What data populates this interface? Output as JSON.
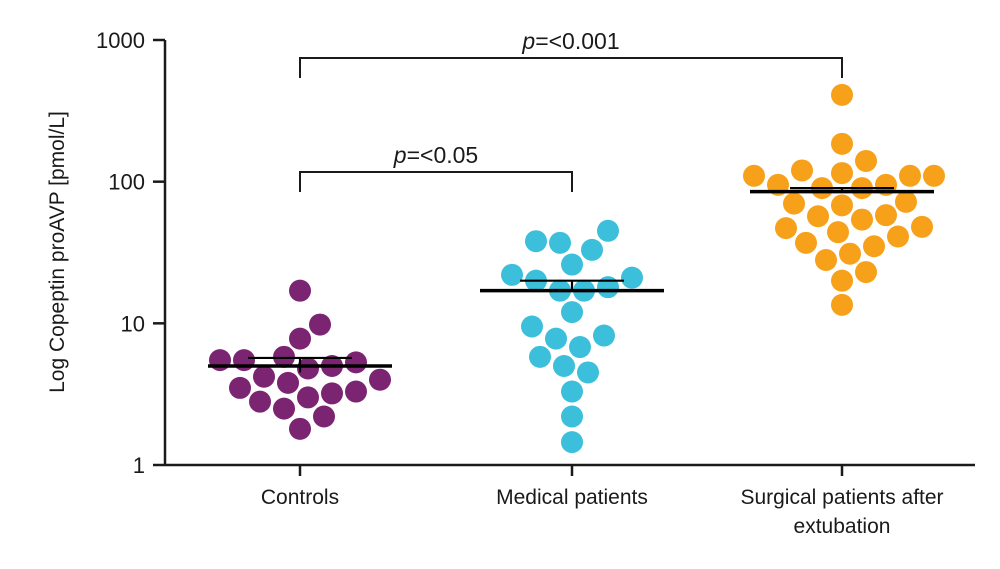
{
  "chart_data": {
    "type": "scatter",
    "ylabel": "Log Copeptin proAVP [pmol/L]",
    "yscale": "log",
    "ylim": [
      1,
      1000
    ],
    "yticks": [
      {
        "value": 1,
        "label": "1"
      },
      {
        "value": 10,
        "label": "10"
      },
      {
        "value": 100,
        "label": "100"
      },
      {
        "value": 1000,
        "label": "1000"
      }
    ],
    "categories": [
      {
        "label_lines": [
          "Controls"
        ],
        "color": "#7B2471"
      },
      {
        "label_lines": [
          "Medical patients"
        ],
        "color": "#3CBFDA"
      },
      {
        "label_lines": [
          "Surgical patients after",
          "extubation"
        ],
        "color": "#F7A019"
      }
    ],
    "series": [
      {
        "values": [
          17,
          9.8,
          7.8,
          5.8,
          5.3,
          5.0,
          5.5,
          4.8,
          5.5,
          3.8,
          3.3,
          4.2,
          4.0,
          3.5,
          3.2,
          2.5,
          2.8,
          3.0,
          2.2,
          1.8
        ],
        "median": 5.0,
        "error": [
          4.5,
          5.7
        ]
      },
      {
        "values": [
          45,
          37,
          38,
          33,
          26,
          21,
          22,
          20,
          17,
          18,
          17,
          12,
          9.5,
          7.8,
          8.2,
          6.8,
          5.8,
          5.0,
          4.5,
          3.3,
          2.2,
          1.45
        ],
        "median": 17,
        "error": [
          17,
          20
        ]
      },
      {
        "values": [
          410,
          185,
          140,
          120,
          110,
          110,
          110,
          115,
          90,
          95,
          95,
          90,
          72,
          70,
          68,
          57,
          54,
          58,
          47,
          48,
          44,
          41,
          37,
          35,
          31,
          28,
          23,
          20,
          13.5
        ],
        "median": 85,
        "error": [
          85,
          90
        ]
      }
    ],
    "annotations": [
      {
        "from": 0,
        "to": 2,
        "p_italic": "p",
        "text": "=<0.001"
      },
      {
        "from": 0,
        "to": 1,
        "p_italic": "p",
        "text": "=<0.05"
      }
    ]
  }
}
